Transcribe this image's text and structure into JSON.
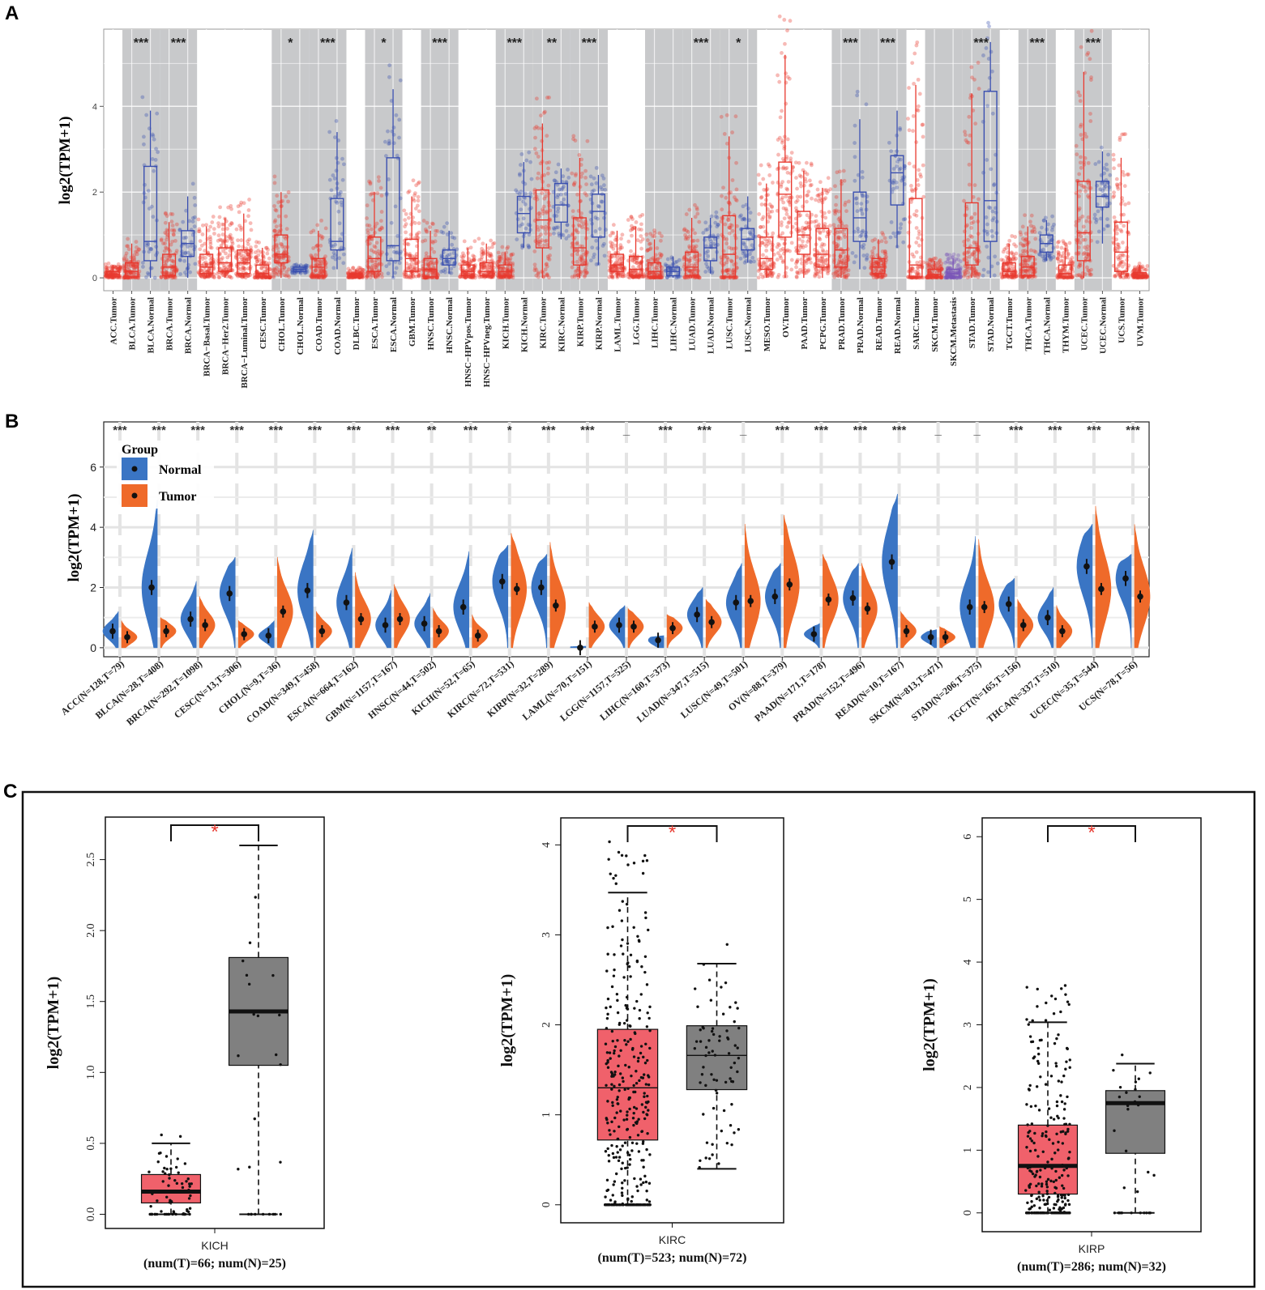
{
  "panel_labels": {
    "a": "A",
    "b": "B",
    "c": "C"
  },
  "colors": {
    "tumor": "#e8392f",
    "normal": "#3a4fb0",
    "metastasis": "#7b56b8",
    "violin_normal": "#3a75c4",
    "violin_tumor": "#ef6a2a",
    "box_tumor": "#f0616b",
    "box_normal": "#808080",
    "sig_red": "#e8392f",
    "shade": "#c8c9cb"
  },
  "chart_data": [
    {
      "panel": "A",
      "type": "box",
      "ylabel": "log2(TPM+1)",
      "ylim": [
        -0.3,
        5.8
      ],
      "yticks": [
        0,
        2,
        4
      ],
      "categories": [
        "ACC.Tumor",
        "BLCA.Tumor",
        "BLCA.Normal",
        "BRCA.Tumor",
        "BRCA.Normal",
        "BRCA−Basal.Tumor",
        "BRCA−Her2.Tumor",
        "BRCA−Luminal.Tumor",
        "CESC.Tumor",
        "CHOL.Tumor",
        "CHOL.Normal",
        "COAD.Tumor",
        "COAD.Normal",
        "DLBC.Tumor",
        "ESCA.Tumor",
        "ESCA.Normal",
        "GBM.Tumor",
        "HNSC.Tumor",
        "HNSC.Normal",
        "HNSC−HPVpos.Tumor",
        "HNSC−HPVneg.Tumor",
        "KICH.Tumor",
        "KICH.Normal",
        "KIRC.Tumor",
        "KIRC.Normal",
        "KIRP.Tumor",
        "KIRP.Normal",
        "LAML.Tumor",
        "LGG.Tumor",
        "LIHC.Tumor",
        "LIHC.Normal",
        "LUAD.Tumor",
        "LUAD.Normal",
        "LUSC.Tumor",
        "LUSC.Normal",
        "MESO.Tumor",
        "OV.Tumor",
        "PAAD.Tumor",
        "PCPG.Tumor",
        "PRAD.Tumor",
        "PRAD.Normal",
        "READ.Tumor",
        "READ.Normal",
        "SARC.Tumor",
        "SKCM.Tumor",
        "SKCM.Metastasis",
        "STAD.Tumor",
        "STAD.Normal",
        "TGCT.Tumor",
        "THCA.Tumor",
        "THCA.Normal",
        "THYM.Tumor",
        "UCEC.Tumor",
        "UCEC.Normal",
        "UCS.Tumor",
        "UVM.Tumor"
      ],
      "groups": [
        "T",
        "T",
        "N",
        "T",
        "N",
        "T",
        "T",
        "T",
        "T",
        "T",
        "N",
        "T",
        "N",
        "T",
        "T",
        "N",
        "T",
        "T",
        "N",
        "T",
        "T",
        "T",
        "N",
        "T",
        "N",
        "T",
        "N",
        "T",
        "T",
        "T",
        "N",
        "T",
        "N",
        "T",
        "N",
        "T",
        "T",
        "T",
        "T",
        "T",
        "N",
        "T",
        "N",
        "T",
        "T",
        "M",
        "T",
        "N",
        "T",
        "T",
        "N",
        "T",
        "T",
        "N",
        "T",
        "T"
      ],
      "boxes": [
        [
          0,
          0.03,
          0.08,
          0.15,
          0.3
        ],
        [
          0,
          0.02,
          0.15,
          0.35,
          0.8
        ],
        [
          0,
          0.4,
          0.85,
          2.6,
          3.9
        ],
        [
          0,
          0.05,
          0.25,
          0.55,
          1.3
        ],
        [
          0,
          0.5,
          0.8,
          1.1,
          1.9
        ],
        [
          0,
          0.1,
          0.25,
          0.55,
          1.2
        ],
        [
          0,
          0.15,
          0.35,
          0.7,
          1.4
        ],
        [
          0,
          0.1,
          0.35,
          0.65,
          1.5
        ],
        [
          0,
          0.02,
          0.1,
          0.3,
          0.7
        ],
        [
          0,
          0.35,
          0.55,
          1.0,
          2.0
        ],
        [
          0.1,
          0.15,
          0.2,
          0.25,
          0.3
        ],
        [
          0,
          0.05,
          0.25,
          0.45,
          1.1
        ],
        [
          0.2,
          0.65,
          0.85,
          1.85,
          3.4
        ],
        [
          0,
          0.02,
          0.05,
          0.1,
          0.2
        ],
        [
          0,
          0.15,
          0.45,
          0.95,
          2.0
        ],
        [
          0,
          0.4,
          0.75,
          2.8,
          4.4
        ],
        [
          0,
          0.15,
          0.45,
          0.9,
          1.9
        ],
        [
          0,
          0.02,
          0.2,
          0.45,
          1.1
        ],
        [
          0.1,
          0.3,
          0.45,
          0.65,
          1.1
        ],
        [
          0,
          0.05,
          0.15,
          0.3,
          0.7
        ],
        [
          0,
          0.05,
          0.15,
          0.35,
          0.8
        ],
        [
          0,
          0.05,
          0.15,
          0.3,
          0.6
        ],
        [
          0.7,
          1.05,
          1.5,
          1.9,
          2.7
        ],
        [
          0,
          0.7,
          1.35,
          2.05,
          3.6
        ],
        [
          0.9,
          1.3,
          1.7,
          2.2,
          2.55
        ],
        [
          0,
          0.3,
          0.7,
          1.4,
          2.8
        ],
        [
          0.3,
          0.95,
          1.55,
          1.95,
          2.4
        ],
        [
          0,
          0.15,
          0.3,
          0.55,
          1.1
        ],
        [
          0,
          0.05,
          0.2,
          0.5,
          1.2
        ],
        [
          0,
          0.02,
          0.15,
          0.35,
          0.9
        ],
        [
          0,
          0.05,
          0.15,
          0.25,
          0.5
        ],
        [
          0,
          0.05,
          0.25,
          0.6,
          1.4
        ],
        [
          0.1,
          0.4,
          0.7,
          0.95,
          1.4
        ],
        [
          0,
          0.02,
          0.55,
          1.45,
          3.3
        ],
        [
          0.35,
          0.65,
          0.9,
          1.15,
          1.9
        ],
        [
          0,
          0.2,
          0.45,
          0.95,
          2.2
        ],
        [
          0,
          0.95,
          1.95,
          2.7,
          5.2
        ],
        [
          0,
          0.55,
          1.0,
          1.55,
          2.5
        ],
        [
          0,
          0.25,
          0.55,
          1.15,
          2.1
        ],
        [
          0,
          0.25,
          0.65,
          1.15,
          2.3
        ],
        [
          0.2,
          0.85,
          1.4,
          2.0,
          3.7
        ],
        [
          0,
          0.1,
          0.25,
          0.45,
          0.9
        ],
        [
          0.7,
          1.7,
          2.45,
          2.85,
          3.9
        ],
        [
          0,
          0.02,
          0.3,
          1.85,
          4.5
        ],
        [
          0,
          0.02,
          0.08,
          0.2,
          0.4
        ],
        [
          0,
          0.02,
          0.1,
          0.2,
          0.45
        ],
        [
          0,
          0.3,
          0.7,
          1.75,
          4.3
        ],
        [
          0,
          0.85,
          1.8,
          4.35,
          5.5
        ],
        [
          0,
          0.05,
          0.15,
          0.35,
          0.8
        ],
        [
          0,
          0.05,
          0.25,
          0.5,
          1.2
        ],
        [
          0.4,
          0.6,
          0.8,
          1.0,
          1.35
        ],
        [
          0,
          0.02,
          0.1,
          0.3,
          0.7
        ],
        [
          0,
          0.4,
          1.05,
          2.25,
          4.8
        ],
        [
          0.8,
          1.65,
          1.9,
          2.25,
          2.95
        ],
        [
          0,
          0.15,
          0.6,
          1.3,
          2.8
        ],
        [
          0,
          0.02,
          0.05,
          0.12,
          0.3
        ]
      ],
      "shaded_pairs": [
        [
          1,
          2
        ],
        [
          3,
          4
        ],
        [
          9,
          10
        ],
        [
          11,
          12
        ],
        [
          14,
          15
        ],
        [
          17,
          18
        ],
        [
          21,
          22
        ],
        [
          23,
          24
        ],
        [
          25,
          26
        ],
        [
          29,
          30
        ],
        [
          31,
          32
        ],
        [
          33,
          34
        ],
        [
          39,
          40
        ],
        [
          41,
          42
        ],
        [
          44,
          45
        ],
        [
          46,
          47
        ],
        [
          49,
          50
        ],
        [
          52,
          53
        ]
      ],
      "significance": [
        "***",
        "***",
        "*",
        "***",
        "*",
        "***",
        "***",
        "**",
        "***",
        "",
        "***",
        "*",
        "***",
        "***",
        "",
        "***",
        "***",
        "***"
      ]
    },
    {
      "panel": "B",
      "type": "split-violin",
      "ylabel": "log2(TPM+1)",
      "ylim": [
        -0.3,
        7.5
      ],
      "yticks": [
        0,
        2,
        4,
        6
      ],
      "legend": {
        "title": "Group",
        "entries": [
          "Normal",
          "Tumor"
        ],
        "position": "top-left"
      },
      "categories": [
        "ACC(N=128,T=79)",
        "BLCA(N=28,T=408)",
        "BRCA(N=292,T=1098)",
        "CESC(N=13,T=306)",
        "CHOL(N=9,T=36)",
        "COAD(N=349,T=458)",
        "ESCA(N=664,T=162)",
        "GBM(N=1157,T=167)",
        "HNSC(N=44,T=502)",
        "KICH(N=52,T=65)",
        "KIRC(N=72,T=531)",
        "KIRP(N=32,T=289)",
        "LAML(N=70,T=151)",
        "LGG(N=1157,T=525)",
        "LIHC(N=160,T=373)",
        "LUAD(N=347,T=515)",
        "LUSC(N=49,T=501)",
        "OV(N=88,T=379)",
        "PAAD(N=171,T=178)",
        "PRAD(N=152,T=496)",
        "READ(N=10,T=167)",
        "SKCM(N=813,T=471)",
        "STAD(N=206,T=375)",
        "TGCT(N=165,T=156)",
        "THCA(N=337,T=510)",
        "UCEC(N=35,T=544)",
        "UCS(N=78,T=56)"
      ],
      "normal_median": [
        0.55,
        2.0,
        0.95,
        1.8,
        0.4,
        1.9,
        1.5,
        0.75,
        0.8,
        1.35,
        2.2,
        2.0,
        0.0,
        0.75,
        0.25,
        1.1,
        1.5,
        1.7,
        0.45,
        1.65,
        2.85,
        0.35,
        1.35,
        1.45,
        1.0,
        2.7,
        2.3
      ],
      "tumor_median": [
        0.35,
        0.55,
        0.75,
        0.45,
        1.2,
        0.55,
        0.95,
        0.95,
        0.55,
        0.4,
        1.95,
        1.4,
        0.7,
        0.7,
        0.65,
        0.85,
        1.55,
        2.1,
        1.6,
        1.3,
        0.55,
        0.35,
        1.35,
        0.75,
        0.55,
        1.95,
        1.7
      ],
      "normal_max": [
        1.2,
        4.9,
        2.2,
        3.0,
        0.9,
        3.9,
        3.3,
        1.9,
        1.8,
        3.2,
        3.4,
        3.1,
        0.05,
        1.4,
        0.4,
        2.0,
        2.8,
        2.8,
        0.8,
        2.8,
        5.1,
        0.6,
        3.7,
        2.3,
        2.0,
        4.1,
        3.1
      ],
      "tumor_max": [
        0.9,
        1.0,
        1.7,
        0.9,
        3.0,
        1.2,
        2.5,
        2.1,
        1.3,
        1.1,
        3.8,
        3.5,
        1.5,
        1.3,
        1.1,
        1.6,
        4.1,
        4.4,
        3.1,
        2.8,
        1.2,
        0.7,
        3.6,
        1.6,
        1.4,
        4.7,
        4.1
      ],
      "significance": [
        "***",
        "***",
        "***",
        "***",
        "***",
        "***",
        "***",
        "***",
        "**",
        "***",
        "*",
        "***",
        "***",
        "_",
        "***",
        "***",
        "_",
        "***",
        "***",
        "***",
        "***",
        "_",
        "_",
        "***",
        "***",
        "***",
        "***"
      ]
    },
    {
      "panel": "C",
      "type": "box",
      "ylabel": "log2(TPM+1)",
      "subplots": [
        {
          "name": "KICH",
          "caption": "(num(T)=66; num(N)=25)",
          "significance": "*",
          "ylim": [
            -0.1,
            2.8
          ],
          "yticks": [
            "0.0",
            "0.5",
            "1.0",
            "1.5",
            "2.0",
            "2.5"
          ],
          "tumor": [
            0,
            0.08,
            0.16,
            0.28,
            0.5
          ],
          "normal": [
            0,
            1.05,
            1.43,
            1.81,
            2.6
          ]
        },
        {
          "name": "KIRC",
          "caption": "(num(T)=523; num(N)=72)",
          "significance": "*",
          "ylim": [
            -0.2,
            4.3
          ],
          "yticks": [
            "0",
            "1",
            "2",
            "3",
            "4"
          ],
          "tumor": [
            0,
            0.72,
            1.3,
            1.95,
            3.47
          ],
          "normal": [
            0.4,
            1.28,
            1.66,
            1.99,
            2.68
          ]
        },
        {
          "name": "KIRP",
          "caption": "(num(T)=286; num(N)=32)",
          "significance": "*",
          "ylim": [
            -0.3,
            6.3
          ],
          "yticks": [
            "0",
            "1",
            "2",
            "3",
            "4",
            "5",
            "6"
          ],
          "tumor": [
            0,
            0.3,
            0.75,
            1.4,
            3.04
          ],
          "normal": [
            0,
            0.95,
            1.75,
            1.95,
            2.38
          ]
        }
      ]
    }
  ]
}
